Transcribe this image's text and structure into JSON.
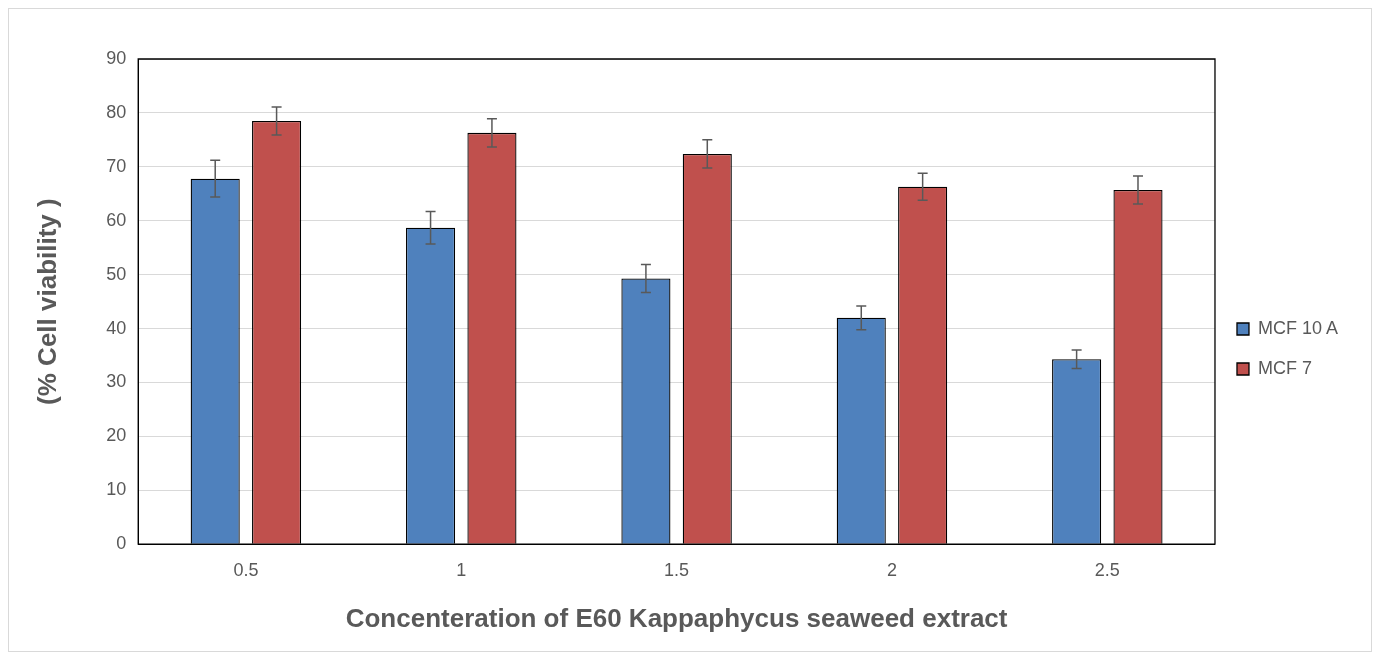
{
  "chart_data": {
    "type": "bar",
    "xlabel": "Concenteration of E60 Kappaphycus seaweed extract",
    "ylabel": "(% Cell viability )",
    "categories": [
      "0.5",
      "1",
      "1.5",
      "2",
      "2.5"
    ],
    "series": [
      {
        "name": "MCF 10 A",
        "color": "#4f81bd",
        "values": [
          67.8,
          58.7,
          49.3,
          42,
          34.3
        ],
        "errors": [
          3.4,
          3,
          2.6,
          2.2,
          1.7
        ]
      },
      {
        "name": "MCF 7",
        "color": "#c0504d",
        "values": [
          78.5,
          76.3,
          72.4,
          66.3,
          65.7
        ],
        "errors": [
          2.6,
          2.6,
          2.6,
          2.5,
          2.6
        ]
      }
    ],
    "ylim": [
      0,
      90
    ],
    "yticks": [
      0,
      10,
      20,
      30,
      40,
      50,
      60,
      70,
      80,
      90
    ],
    "grid": "y",
    "legend": "right"
  }
}
